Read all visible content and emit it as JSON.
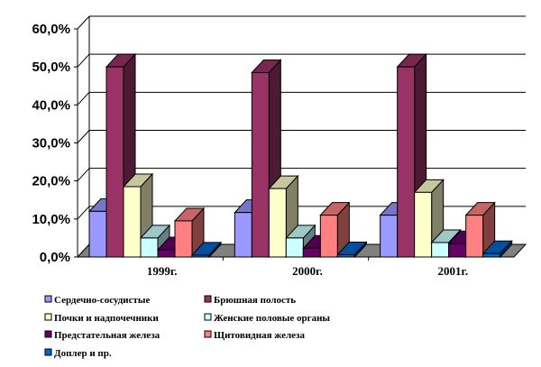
{
  "chart_data": {
    "type": "bar",
    "subtype": "3d-clustered-column",
    "title": "",
    "xlabel": "",
    "ylabel": "",
    "categories": [
      "1999г.",
      "2000г.",
      "2001г."
    ],
    "yticks": [
      "0,0%",
      "10,0%",
      "20,0%",
      "30,0%",
      "40,0%",
      "50,0%",
      "60,0%"
    ],
    "ylim": [
      0,
      60
    ],
    "grid": true,
    "legend_position": "bottom",
    "series": [
      {
        "name": "Сердечно-сосудистые",
        "color": "#9999FF",
        "values": [
          12.0,
          11.7,
          11.0
        ]
      },
      {
        "name": "Брюшная полость",
        "color": "#993366",
        "values": [
          50.0,
          48.5,
          50.0
        ]
      },
      {
        "name": "Почки и надпочечники",
        "color": "#FFFFCC",
        "values": [
          18.5,
          18.0,
          17.0
        ]
      },
      {
        "name": "Женские половые органы",
        "color": "#CCFFFF",
        "values": [
          5.0,
          5.0,
          3.8
        ]
      },
      {
        "name": "Предстательная  железа",
        "color": "#660066",
        "values": [
          1.9,
          2.3,
          3.5
        ]
      },
      {
        "name": "Щитовидная железа",
        "color": "#FF8080",
        "values": [
          9.5,
          11.0,
          11.0
        ]
      },
      {
        "name": "Доплер и пр.",
        "color": "#0066CC",
        "values": [
          0.5,
          0.6,
          0.9
        ]
      }
    ]
  }
}
